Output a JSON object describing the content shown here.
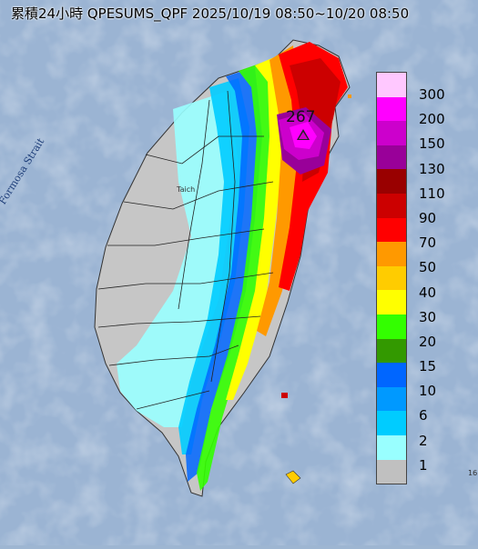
{
  "title": "累積24小時 QPESUMS_QPF 2025/10/19 08:50~10/20 08:50",
  "strait_label": "Formosa Strait",
  "peak_value": "267",
  "city_label": "Taich",
  "edge_label": "16",
  "legend": {
    "items": [
      {
        "label": "300",
        "color": "#ffc8ff"
      },
      {
        "label": "200",
        "color": "#ff00ff"
      },
      {
        "label": "150",
        "color": "#cc00cc"
      },
      {
        "label": "130",
        "color": "#990099"
      },
      {
        "label": "110",
        "color": "#990000"
      },
      {
        "label": "90",
        "color": "#cc0000"
      },
      {
        "label": "70",
        "color": "#ff0000"
      },
      {
        "label": "50",
        "color": "#ff9900"
      },
      {
        "label": "40",
        "color": "#ffcc00"
      },
      {
        "label": "30",
        "color": "#ffff00"
      },
      {
        "label": "20",
        "color": "#33ff00"
      },
      {
        "label": "15",
        "color": "#339900"
      },
      {
        "label": "10",
        "color": "#0066ff"
      },
      {
        "label": "6",
        "color": "#0099ff"
      },
      {
        "label": "2",
        "color": "#00ccff"
      },
      {
        "label": "1",
        "color": "#99ffff"
      },
      {
        "label": "",
        "color": "#c0c0c0"
      }
    ]
  }
}
